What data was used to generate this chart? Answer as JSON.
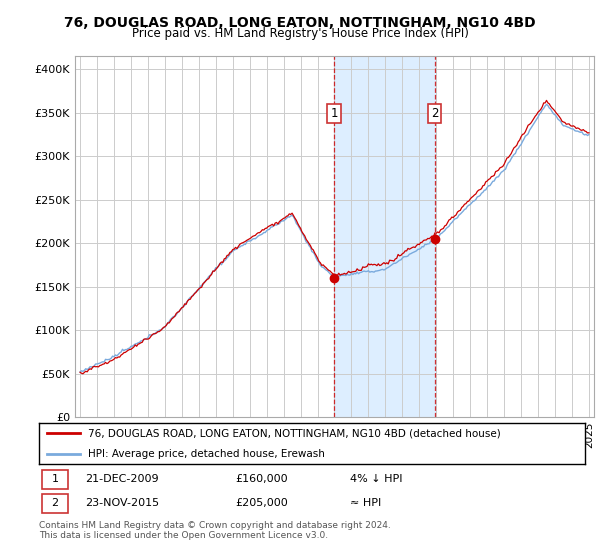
{
  "title": "76, DOUGLAS ROAD, LONG EATON, NOTTINGHAM, NG10 4BD",
  "subtitle": "Price paid vs. HM Land Registry's House Price Index (HPI)",
  "ylabel_ticks": [
    "£0",
    "£50K",
    "£100K",
    "£150K",
    "£200K",
    "£250K",
    "£300K",
    "£350K",
    "£400K"
  ],
  "ytick_values": [
    0,
    50000,
    100000,
    150000,
    200000,
    250000,
    300000,
    350000,
    400000
  ],
  "ylim": [
    0,
    415000
  ],
  "xlim_start": 1994.7,
  "xlim_end": 2025.3,
  "transaction1": {
    "date_num": 2009.97,
    "price": 160000,
    "label": "1"
  },
  "transaction2": {
    "date_num": 2015.9,
    "price": 205000,
    "label": "2"
  },
  "shade_x_start": 2009.97,
  "shade_x_end": 2015.9,
  "dashed_color": "#cc0000",
  "hpi_color": "#7aaadd",
  "price_color": "#cc0000",
  "shade_color": "#ddeeff",
  "legend_entry1": "76, DOUGLAS ROAD, LONG EATON, NOTTINGHAM, NG10 4BD (detached house)",
  "legend_entry2": "HPI: Average price, detached house, Erewash",
  "table_row1": [
    "1",
    "21-DEC-2009",
    "£160,000",
    "4% ↓ HPI"
  ],
  "table_row2": [
    "2",
    "23-NOV-2015",
    "£205,000",
    "≈ HPI"
  ],
  "footer": "Contains HM Land Registry data © Crown copyright and database right 2024.\nThis data is licensed under the Open Government Licence v3.0.",
  "background_color": "#ffffff",
  "grid_color": "#cccccc"
}
